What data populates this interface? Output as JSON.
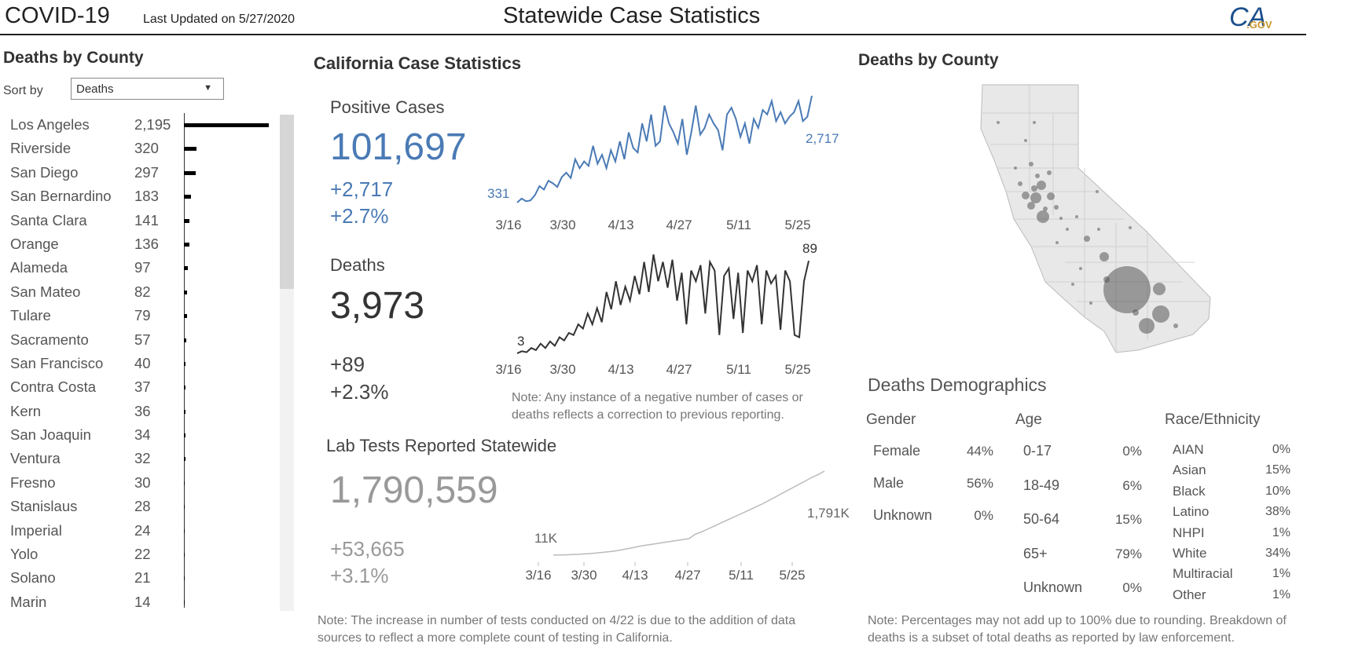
{
  "header": {
    "title": "COVID-19",
    "updated": "Last Updated on 5/27/2020",
    "center_title": "Statewide Case Statistics",
    "logo_text": "CA",
    "logo_sub": ".GOV"
  },
  "left_panel": {
    "title": "Deaths by County",
    "sort_label": "Sort by",
    "sort_value": "Deaths",
    "counties": [
      {
        "name": "Los Angeles",
        "value": "2,195",
        "deaths": 2195
      },
      {
        "name": "Riverside",
        "value": "320",
        "deaths": 320
      },
      {
        "name": "San Diego",
        "value": "297",
        "deaths": 297
      },
      {
        "name": "San Bernardino",
        "value": "183",
        "deaths": 183
      },
      {
        "name": "Santa Clara",
        "value": "141",
        "deaths": 141
      },
      {
        "name": "Orange",
        "value": "136",
        "deaths": 136
      },
      {
        "name": "Alameda",
        "value": "97",
        "deaths": 97
      },
      {
        "name": "San Mateo",
        "value": "82",
        "deaths": 82
      },
      {
        "name": "Tulare",
        "value": "79",
        "deaths": 79
      },
      {
        "name": "Sacramento",
        "value": "57",
        "deaths": 57
      },
      {
        "name": "San Francisco",
        "value": "40",
        "deaths": 40
      },
      {
        "name": "Contra Costa",
        "value": "37",
        "deaths": 37
      },
      {
        "name": "Kern",
        "value": "36",
        "deaths": 36
      },
      {
        "name": "San Joaquin",
        "value": "34",
        "deaths": 34
      },
      {
        "name": "Ventura",
        "value": "32",
        "deaths": 32
      },
      {
        "name": "Fresno",
        "value": "30",
        "deaths": 30
      },
      {
        "name": "Stanislaus",
        "value": "28",
        "deaths": 28
      },
      {
        "name": "Imperial",
        "value": "24",
        "deaths": 24
      },
      {
        "name": "Yolo",
        "value": "22",
        "deaths": 22
      },
      {
        "name": "Solano",
        "value": "21",
        "deaths": 21
      },
      {
        "name": "Marin",
        "value": "14",
        "deaths": 14
      }
    ]
  },
  "middle": {
    "title": "California Case Statistics",
    "positive": {
      "label": "Positive Cases",
      "total": "101,697",
      "delta": "+2,717",
      "pct": "+2.7%",
      "first_label": "331",
      "last_label": "2,717",
      "color": "#4a7ab5"
    },
    "deaths": {
      "label": "Deaths",
      "total": "3,973",
      "delta": "+89",
      "pct": "+2.3%",
      "first_label": "3",
      "last_label": "89",
      "color": "#333333"
    },
    "x_ticks": [
      "3/16",
      "3/30",
      "4/13",
      "4/27",
      "5/11",
      "5/25"
    ],
    "note_cases": "Note: Any instance of a negative number of cases or deaths reflects a correction to previous reporting.",
    "tests": {
      "label": "Lab Tests Reported Statewide",
      "total": "1,790,559",
      "delta": "+53,665",
      "pct": "+3.1%",
      "first_label": "11K",
      "last_label": "1,791K",
      "color": "#bbbbbb"
    },
    "note_tests": "Note: The increase in number of tests conducted on 4/22 is due to the addition of data sources to reflect a more complete count of testing in California."
  },
  "chart_data": [
    {
      "type": "line",
      "title": "Positive Cases",
      "x_ticks": [
        "3/16",
        "3/30",
        "4/13",
        "4/27",
        "5/11",
        "5/25"
      ],
      "series": [
        {
          "values": [
            331,
            420,
            360,
            380,
            500,
            700,
            620,
            820,
            760,
            680,
            900,
            1000,
            880,
            1300,
            1100,
            1250,
            1150,
            1600,
            1200,
            1400,
            1100,
            1500,
            1250,
            1700,
            1300,
            1900,
            1550,
            1450,
            2100,
            1700,
            2300,
            1600,
            1700,
            2500,
            2100,
            1900,
            1650,
            2200,
            1400,
            1900,
            2500,
            1850,
            2000,
            2300,
            2100,
            1950,
            1500,
            2300,
            2450,
            2200,
            1800,
            2100,
            1650,
            2200,
            2000,
            2400,
            2300,
            2600,
            2150,
            2350,
            2100,
            2250,
            2350,
            2600,
            2150,
            2250,
            2717
          ]
        }
      ]
    },
    {
      "type": "line",
      "title": "Deaths",
      "x_ticks": [
        "3/16",
        "3/30",
        "4/13",
        "4/27",
        "5/11",
        "5/25"
      ],
      "series": [
        {
          "values": [
            3,
            5,
            4,
            8,
            6,
            12,
            8,
            14,
            10,
            18,
            15,
            22,
            20,
            30,
            26,
            40,
            30,
            45,
            32,
            60,
            44,
            70,
            48,
            65,
            52,
            75,
            58,
            88,
            60,
            95,
            70,
            88,
            64,
            90,
            52,
            78,
            30,
            80,
            70,
            85,
            40,
            88,
            80,
            20,
            75,
            82,
            35,
            78,
            22,
            80,
            70,
            85,
            30,
            80,
            68,
            75,
            25,
            80,
            70,
            20,
            18,
            70,
            89
          ]
        }
      ]
    },
    {
      "type": "line",
      "title": "Lab Tests Reported Statewide",
      "x_ticks": [
        "3/16",
        "3/30",
        "4/13",
        "4/27",
        "5/11",
        "5/25"
      ],
      "series": [
        {
          "values": [
            11,
            14,
            18,
            22,
            28,
            36,
            45,
            56,
            70,
            85,
            100,
            120,
            145,
            170,
            200,
            220,
            240,
            260,
            280,
            300,
            320,
            340,
            360,
            450,
            500,
            560,
            620,
            680,
            740,
            800,
            860,
            920,
            980,
            1040,
            1100,
            1170,
            1240,
            1310,
            1380,
            1450,
            1520,
            1590,
            1660,
            1720,
            1791
          ]
        }
      ]
    }
  ],
  "right": {
    "map_title": "Deaths by County",
    "demo_title": "Deaths Demographics",
    "gender": {
      "head": "Gender",
      "rows": [
        {
          "label": "Female",
          "pct": "44%"
        },
        {
          "label": "Male",
          "pct": "56%"
        },
        {
          "label": "Unknown",
          "pct": "0%"
        }
      ]
    },
    "age": {
      "head": "Age",
      "rows": [
        {
          "label": "0-17",
          "pct": "0%"
        },
        {
          "label": "18-49",
          "pct": "6%"
        },
        {
          "label": "50-64",
          "pct": "15%"
        },
        {
          "label": "65+",
          "pct": "79%"
        },
        {
          "label": "Unknown",
          "pct": "0%"
        }
      ]
    },
    "race": {
      "head": "Race/Ethnicity",
      "rows": [
        {
          "label": "AIAN",
          "pct": "0%"
        },
        {
          "label": "Asian",
          "pct": "15%"
        },
        {
          "label": "Black",
          "pct": "10%"
        },
        {
          "label": "Latino",
          "pct": "38%"
        },
        {
          "label": "NHPI",
          "pct": "1%"
        },
        {
          "label": "White",
          "pct": "34%"
        },
        {
          "label": "Multiracial",
          "pct": "1%"
        },
        {
          "label": "Other",
          "pct": "1%"
        }
      ]
    },
    "note": "Note: Percentages may not add up to 100% due to rounding. Breakdown of deaths is a subset of total deaths as reported by law enforcement."
  }
}
